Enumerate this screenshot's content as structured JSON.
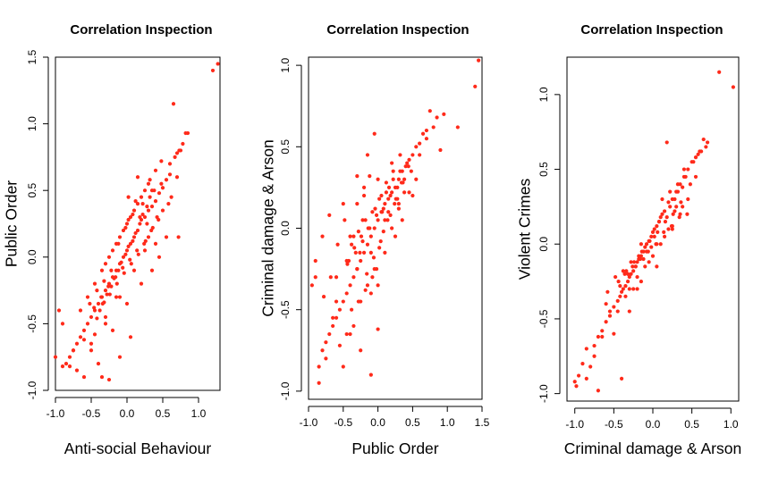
{
  "chart_data": [
    {
      "type": "scatter",
      "title": "Correlation Inspection",
      "xlabel": "Anti-social Behaviour",
      "ylabel": "Public Order",
      "xlim": [
        -1.0,
        1.3
      ],
      "ylim": [
        -1.0,
        1.5
      ],
      "xticks": [
        -1.0,
        -0.5,
        0.0,
        0.5,
        1.0
      ],
      "xtick_labels": [
        "-1.0",
        "-0.5",
        "0.0",
        "0.5",
        "1.0"
      ],
      "yticks": [
        -1.0,
        -0.5,
        0.0,
        0.5,
        1.0,
        1.5
      ],
      "ytick_labels": [
        "-1.0",
        "-0.5",
        "0.0",
        "0.5",
        "1.0",
        "1.5"
      ],
      "color": "#ff2a1a",
      "series": [
        {
          "x": [
            1.27,
            1.2,
            0.65,
            0.82,
            0.85,
            0.78,
            0.73,
            0.7,
            0.67,
            0.72,
            0.7,
            0.6,
            0.55,
            0.5,
            0.48,
            0.62,
            0.58,
            0.45,
            0.4,
            0.35,
            0.3,
            0.25,
            0.2,
            0.15,
            0.1,
            0.05,
            0.0,
            -0.05,
            -0.1,
            -0.15,
            -0.2,
            -0.25,
            -0.3,
            -0.35,
            -0.4,
            -0.45,
            -0.5,
            -0.55,
            -0.6,
            -0.65,
            -0.7,
            -0.75,
            -0.8,
            -0.85,
            -0.9,
            -0.95,
            -1.0,
            0.38,
            0.32,
            0.28,
            0.22,
            0.18,
            0.12,
            0.08,
            0.02,
            -0.02,
            -0.08,
            -0.12,
            -0.18,
            -0.22,
            -0.28,
            -0.32,
            -0.38,
            -0.42,
            0.42,
            0.36,
            0.3,
            0.24,
            0.16,
            0.06,
            -0.04,
            -0.14,
            -0.24,
            -0.34,
            0.5,
            0.44,
            0.34,
            0.26,
            0.14,
            0.04,
            -0.06,
            -0.16,
            -0.26,
            -0.36,
            -0.46,
            0.1,
            0.0,
            -0.1,
            -0.2,
            -0.3,
            0.2,
            0.3,
            0.15,
            0.05,
            -0.05,
            -0.15,
            -0.25,
            -0.35,
            -0.45,
            -0.55,
            -0.65,
            0.4,
            0.25,
            0.1,
            -0.1,
            -0.3,
            -0.5,
            0.55,
            0.45,
            0.35,
            0.2,
            0.0,
            -0.2,
            -0.4,
            -0.6,
            -0.7,
            -0.8,
            -0.5,
            -0.35,
            -0.25,
            -0.1,
            0.05,
            0.15,
            0.25,
            0.32,
            0.4,
            0.48,
            0.6,
            0.75,
            -0.9,
            -0.75,
            -0.6,
            -0.45,
            -0.3,
            -0.15,
            0.02,
            0.12,
            0.22,
            0.35,
            -0.02,
            -0.12,
            0.08,
            0.18,
            0.28,
            -0.22,
            -0.32,
            -0.42,
            -0.52,
            0.02
          ],
          "y": [
            1.45,
            1.4,
            1.15,
            0.93,
            0.93,
            0.85,
            0.8,
            0.78,
            0.75,
            0.15,
            0.6,
            0.62,
            0.58,
            0.52,
            0.55,
            0.45,
            0.4,
            0.48,
            0.42,
            0.38,
            0.35,
            0.3,
            0.28,
            0.2,
            0.15,
            0.1,
            0.05,
            0.0,
            -0.05,
            -0.1,
            -0.15,
            -0.2,
            -0.25,
            -0.3,
            -0.35,
            -0.4,
            -0.45,
            -0.5,
            -0.55,
            -0.6,
            -0.65,
            -0.7,
            -0.75,
            -0.8,
            -0.5,
            -0.4,
            -0.75,
            0.5,
            0.45,
            0.38,
            0.32,
            0.25,
            0.18,
            0.12,
            0.08,
            0.02,
            -0.04,
            -0.1,
            -0.16,
            -0.22,
            -0.28,
            -0.34,
            -0.4,
            -0.46,
            0.3,
            0.22,
            0.15,
            0.1,
            0.02,
            -0.05,
            -0.12,
            -0.2,
            -0.28,
            -0.35,
            0.35,
            0.28,
            0.2,
            0.12,
            0.05,
            -0.02,
            -0.08,
            -0.15,
            -0.22,
            -0.3,
            -0.38,
            0.35,
            0.25,
            0.15,
            0.05,
            -0.05,
            0.45,
            0.55,
            0.4,
            0.3,
            0.2,
            0.1,
            0.0,
            -0.1,
            -0.2,
            -0.3,
            -0.4,
            0.1,
            0.05,
            -0.1,
            -0.3,
            -0.5,
            -0.7,
            0.15,
            0.0,
            -0.1,
            -0.2,
            -0.35,
            -0.55,
            -0.8,
            -0.9,
            -0.85,
            -0.82,
            -0.65,
            -0.9,
            -0.92,
            -0.75,
            -0.6,
            0.6,
            0.5,
            0.58,
            0.65,
            0.72,
            0.7,
            0.8,
            -0.82,
            -0.7,
            -0.62,
            -0.58,
            -0.45,
            -0.3,
            0.28,
            0.42,
            0.4,
            0.5,
            0.22,
            0.1,
            0.32,
            0.3,
            0.25,
            -0.1,
            -0.18,
            -0.25,
            -0.35,
            0.45
          ]
        }
      ]
    },
    {
      "type": "scatter",
      "title": "Correlation Inspection",
      "xlabel": "Public Order",
      "ylabel": "Criminal damage & Arson",
      "xlim": [
        -1.0,
        1.5
      ],
      "ylim": [
        -1.05,
        1.05
      ],
      "xticks": [
        -1.0,
        -0.5,
        0.0,
        0.5,
        1.0,
        1.5
      ],
      "xtick_labels": [
        "-1.0",
        "-0.5",
        "0.0",
        "0.5",
        "1.0",
        "1.5"
      ],
      "yticks": [
        -1.0,
        -0.5,
        0.0,
        0.5,
        1.0
      ],
      "ytick_labels": [
        "-1.0",
        "-0.5",
        "0.0",
        "0.5",
        "1.0"
      ],
      "color": "#ff2a1a",
      "series": [
        {
          "x": [
            1.45,
            1.4,
            1.15,
            0.95,
            0.85,
            0.75,
            0.7,
            0.65,
            0.6,
            0.55,
            0.5,
            0.45,
            0.4,
            0.35,
            0.3,
            0.25,
            0.2,
            0.15,
            0.1,
            0.05,
            0.0,
            -0.05,
            -0.1,
            -0.15,
            -0.2,
            -0.25,
            -0.3,
            -0.35,
            -0.4,
            -0.45,
            -0.5,
            -0.55,
            -0.6,
            -0.65,
            -0.7,
            -0.75,
            -0.8,
            -0.85,
            -0.9,
            -0.95,
            -0.55,
            -0.45,
            -0.35,
            -0.25,
            -0.1,
            0.0,
            -0.05,
            -0.15,
            -0.3,
            -0.5,
            -0.7,
            -0.8,
            0.42,
            0.38,
            0.32,
            0.28,
            0.22,
            0.18,
            0.12,
            0.08,
            0.02,
            -0.02,
            -0.08,
            -0.12,
            -0.18,
            -0.22,
            -0.28,
            -0.32,
            -0.38,
            -0.42,
            0.48,
            0.36,
            0.26,
            0.16,
            0.06,
            -0.04,
            -0.14,
            -0.24,
            -0.34,
            -0.44,
            0.5,
            0.3,
            0.1,
            -0.1,
            -0.3,
            0.2,
            0.0,
            -0.2,
            -0.4,
            -0.6,
            0.15,
            0.05,
            -0.05,
            -0.15,
            -0.25,
            0.35,
            0.25,
            0.45,
            0.55,
            -0.65,
            -0.75,
            -0.85,
            -0.6,
            -0.5,
            -0.4,
            -0.9,
            0.6,
            0.7,
            0.8,
            0.9,
            0.0,
            0.1,
            0.2,
            0.3,
            -0.2,
            -0.3,
            -0.1,
            -0.45,
            -0.35,
            0.12,
            0.22,
            0.32,
            -0.12,
            -0.22,
            0.02,
            0.08,
            0.18,
            0.28,
            0.38,
            -0.02,
            -0.08,
            -0.18,
            -0.28,
            -0.38,
            -0.48,
            -0.58,
            -0.68,
            -0.78,
            0.24,
            0.14,
            0.04,
            -0.06,
            -0.16,
            -0.26,
            0.34,
            0.44
          ],
          "y": [
            1.03,
            0.87,
            0.62,
            0.7,
            0.68,
            0.72,
            0.6,
            0.58,
            0.52,
            0.5,
            0.45,
            0.42,
            0.38,
            0.35,
            0.3,
            0.25,
            0.22,
            0.18,
            0.15,
            0.1,
            0.05,
            0.0,
            -0.05,
            -0.1,
            -0.15,
            -0.2,
            -0.25,
            -0.3,
            -0.35,
            -0.4,
            -0.45,
            -0.5,
            -0.55,
            -0.6,
            -0.65,
            -0.7,
            -0.75,
            -0.85,
            -0.2,
            -0.35,
            -0.72,
            -0.65,
            -0.6,
            -0.75,
            -0.9,
            -0.62,
            0.58,
            0.45,
            0.32,
            0.15,
            0.08,
            -0.05,
            0.4,
            0.3,
            0.35,
            0.25,
            0.3,
            0.2,
            0.22,
            0.12,
            0.18,
            0.08,
            0.1,
            0.0,
            0.05,
            -0.08,
            -0.02,
            -0.15,
            -0.1,
            -0.2,
            0.35,
            0.28,
            0.18,
            0.25,
            0.1,
            0.12,
            0.0,
            -0.05,
            -0.12,
            -0.22,
            0.2,
            0.15,
            0.05,
            -0.15,
            -0.25,
            0.4,
            0.3,
            0.2,
            -0.05,
            -0.3,
            0.1,
            0.2,
            -0.25,
            -0.35,
            -0.45,
            0.05,
            -0.05,
            0.22,
            0.3,
            -0.55,
            -0.8,
            -0.95,
            -0.45,
            -0.85,
            -0.65,
            -0.3,
            0.45,
            0.55,
            0.62,
            0.48,
            -0.35,
            -0.15,
            0.0,
            0.12,
            0.25,
            0.15,
            -0.4,
            -0.2,
            -0.05,
            0.28,
            0.35,
            0.45,
            0.32,
            0.05,
            -0.12,
            -0.02,
            0.08,
            0.18,
            0.22,
            -0.25,
            -0.3,
            -0.38,
            -0.45,
            -0.5,
            0.05,
            -0.1,
            -0.3,
            -0.42,
            0.15,
            0.05,
            -0.08,
            -0.18,
            -0.28,
            -0.15,
            0.28,
            0.38
          ]
        }
      ]
    },
    {
      "type": "scatter",
      "title": "Correlation Inspection",
      "xlabel": "Criminal damage & Arson",
      "ylabel": "Violent Crimes",
      "xlim": [
        -1.1,
        1.1
      ],
      "ylim": [
        -1.05,
        1.25
      ],
      "xticks": [
        -1.0,
        -0.5,
        0.0,
        0.5,
        1.0
      ],
      "xtick_labels": [
        "-1.0",
        "-0.5",
        "0.0",
        "0.5",
        "1.0"
      ],
      "yticks": [
        -1.0,
        -0.5,
        0.0,
        0.5,
        1.0
      ],
      "ytick_labels": [
        "-1.0",
        "-0.5",
        "0.0",
        "0.5",
        "1.0"
      ],
      "color": "#ff2a1a",
      "series": [
        {
          "x": [
            0.85,
            1.03,
            0.7,
            0.65,
            0.6,
            0.55,
            0.5,
            0.45,
            0.4,
            0.35,
            0.3,
            0.25,
            0.2,
            0.15,
            0.1,
            0.05,
            0.0,
            -0.05,
            -0.1,
            -0.15,
            -0.2,
            -0.25,
            -0.3,
            -0.35,
            -0.4,
            -0.45,
            -0.5,
            -0.55,
            -0.6,
            -0.65,
            -0.7,
            -0.75,
            -0.8,
            -0.85,
            -0.9,
            -0.95,
            -1.0,
            -0.98,
            0.18,
            0.42,
            0.38,
            0.32,
            0.28,
            0.22,
            0.12,
            0.08,
            0.02,
            -0.02,
            -0.08,
            -0.12,
            -0.18,
            -0.22,
            -0.28,
            -0.32,
            -0.38,
            -0.42,
            0.48,
            0.36,
            0.26,
            0.16,
            0.06,
            -0.04,
            -0.14,
            -0.24,
            -0.34,
            -0.44,
            0.2,
            0.1,
            0.0,
            -0.1,
            -0.2,
            -0.3,
            0.3,
            0.15,
            -0.05,
            -0.25,
            -0.45,
            -0.65,
            -0.55,
            -0.35,
            -0.15,
            0.05,
            0.25,
            0.45,
            0.55,
            -0.85,
            -0.75,
            -0.6,
            -0.7,
            -0.4,
            0.62,
            0.52,
            0.35,
            0.25,
            0.05,
            -0.2,
            -0.3,
            -0.5,
            -0.15,
            0.12,
            0.22,
            0.32,
            0.4,
            -0.02,
            -0.12,
            -0.22,
            -0.32,
            -0.42,
            0.02,
            0.08,
            0.18,
            0.28,
            0.38,
            -0.08,
            -0.18,
            -0.28,
            -0.38,
            -0.48,
            -0.58,
            0.14,
            0.24,
            0.34,
            0.44,
            0.04,
            -0.06,
            -0.16,
            -0.26,
            -0.36,
            0.58,
            0.68
          ],
          "y": [
            1.15,
            1.05,
            0.68,
            0.7,
            0.62,
            0.58,
            0.55,
            0.5,
            0.45,
            0.4,
            0.35,
            0.3,
            0.28,
            0.22,
            0.18,
            0.12,
            0.08,
            0.02,
            -0.02,
            -0.08,
            -0.12,
            -0.18,
            -0.22,
            -0.28,
            -0.32,
            -0.38,
            -0.42,
            -0.48,
            -0.52,
            -0.58,
            -0.62,
            -0.68,
            -0.82,
            -0.9,
            -0.8,
            -0.88,
            -0.92,
            -0.95,
            0.68,
            0.45,
            0.38,
            0.35,
            0.3,
            0.25,
            0.2,
            0.15,
            0.1,
            0.05,
            0.0,
            -0.05,
            -0.1,
            -0.15,
            -0.2,
            -0.25,
            -0.3,
            -0.35,
            0.4,
            0.28,
            0.2,
            0.15,
            0.08,
            0.02,
            -0.05,
            -0.12,
            -0.18,
            -0.25,
            0.1,
            0.0,
            -0.08,
            -0.15,
            -0.22,
            -0.3,
            0.25,
            0.05,
            -0.12,
            -0.3,
            -0.45,
            -0.62,
            -0.45,
            -0.35,
            -0.25,
            0.0,
            0.12,
            0.3,
            0.45,
            -0.7,
            -0.75,
            -0.4,
            -0.98,
            -0.9,
            0.62,
            0.55,
            0.2,
            0.1,
            -0.15,
            -0.3,
            -0.45,
            -0.6,
            0.0,
            0.3,
            0.35,
            0.4,
            0.5,
            -0.02,
            -0.1,
            -0.15,
            -0.2,
            -0.28,
            0.05,
            0.15,
            0.18,
            0.22,
            0.25,
            -0.05,
            -0.08,
            -0.12,
            -0.18,
            -0.22,
            -0.32,
            0.08,
            0.12,
            0.18,
            0.2,
            0.0,
            -0.05,
            -0.1,
            -0.15,
            -0.2,
            0.6,
            0.65
          ]
        }
      ]
    }
  ]
}
